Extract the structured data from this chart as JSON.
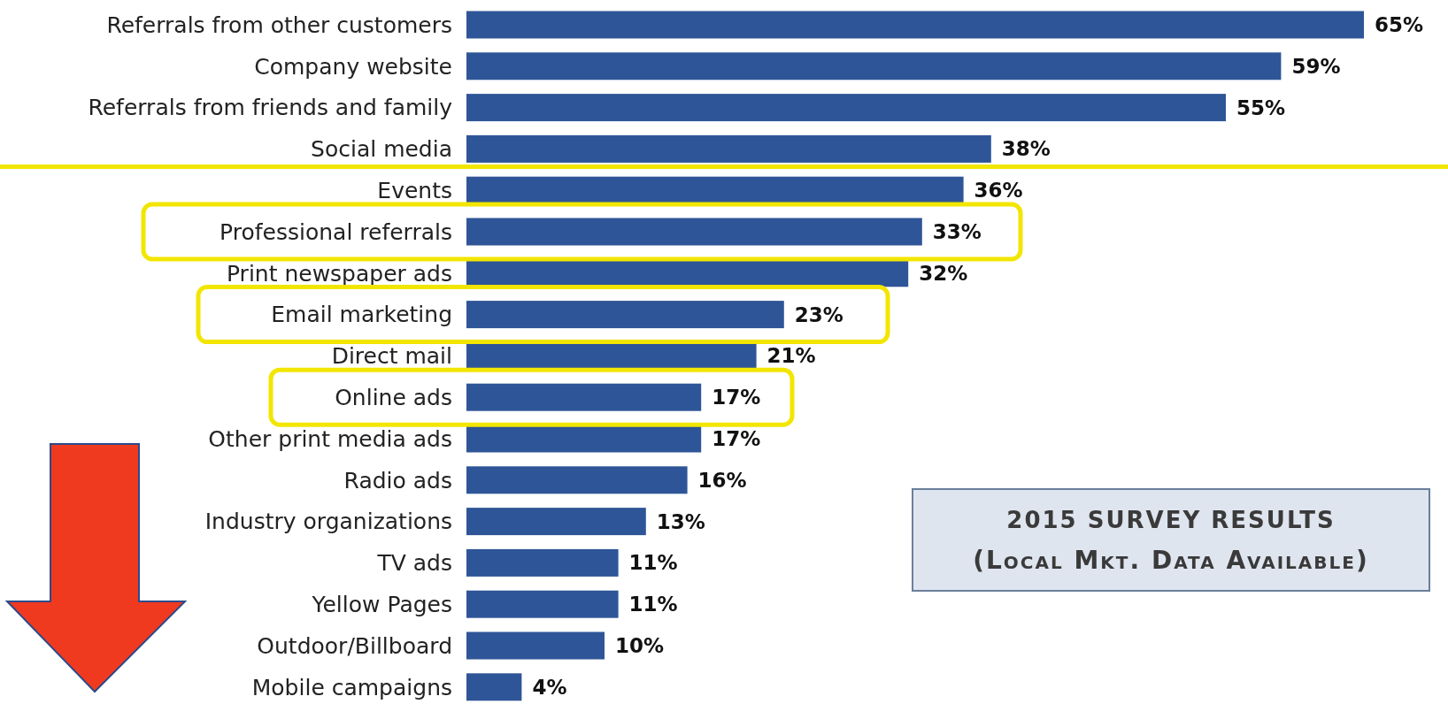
{
  "chart_data": {
    "type": "bar",
    "orientation": "horizontal",
    "categories": [
      "Referrals from other customers",
      "Company website",
      "Referrals from friends and family",
      "Social media",
      "Events",
      "Professional referrals",
      "Print newspaper ads",
      "Email marketing",
      "Direct mail",
      "Online ads",
      "Other print media ads",
      "Radio ads",
      "Industry organizations",
      "TV ads",
      "Yellow Pages",
      "Outdoor/Billboard",
      "Mobile campaigns"
    ],
    "values": [
      65,
      59,
      55,
      38,
      36,
      33,
      32,
      23,
      21,
      17,
      17,
      16,
      13,
      11,
      11,
      10,
      4
    ],
    "value_labels": [
      "65%",
      "59%",
      "55%",
      "38%",
      "36%",
      "33%",
      "32%",
      "23%",
      "21%",
      "17%",
      "17%",
      "16%",
      "13%",
      "11%",
      "11%",
      "10%",
      "4%"
    ],
    "color": "#2e5597",
    "annotations": [
      "2015 SURVEY RESULTS",
      "(Local Mkt. Data Available)"
    ]
  }
}
